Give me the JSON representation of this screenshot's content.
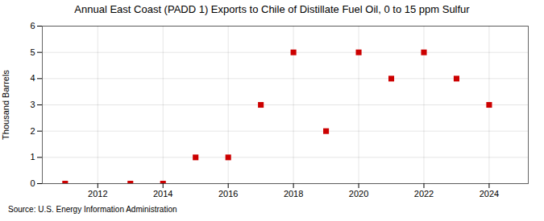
{
  "chart_data": {
    "type": "scatter",
    "title": "Annual East Coast (PADD 1) Exports to Chile of Distillate Fuel Oil, 0 to 15 ppm Sulfur",
    "ylabel": "Thousand Barrels",
    "source": "Source: U.S. Energy Information Administration",
    "x": [
      2011,
      2013,
      2014,
      2015,
      2016,
      2017,
      2018,
      2019,
      2020,
      2021,
      2022,
      2023,
      2024
    ],
    "values": [
      0,
      0,
      0,
      1,
      1,
      3,
      5,
      2,
      5,
      4,
      5,
      4,
      3
    ],
    "color": "#cc0000",
    "marker": "square",
    "xlim": [
      2010.3,
      2025.2
    ],
    "xticks": [
      2012,
      2014,
      2016,
      2018,
      2020,
      2022,
      2024
    ],
    "ylim": [
      0,
      6
    ],
    "yticks": [
      0,
      1,
      2,
      3,
      4,
      5,
      6
    ],
    "grid": true
  }
}
